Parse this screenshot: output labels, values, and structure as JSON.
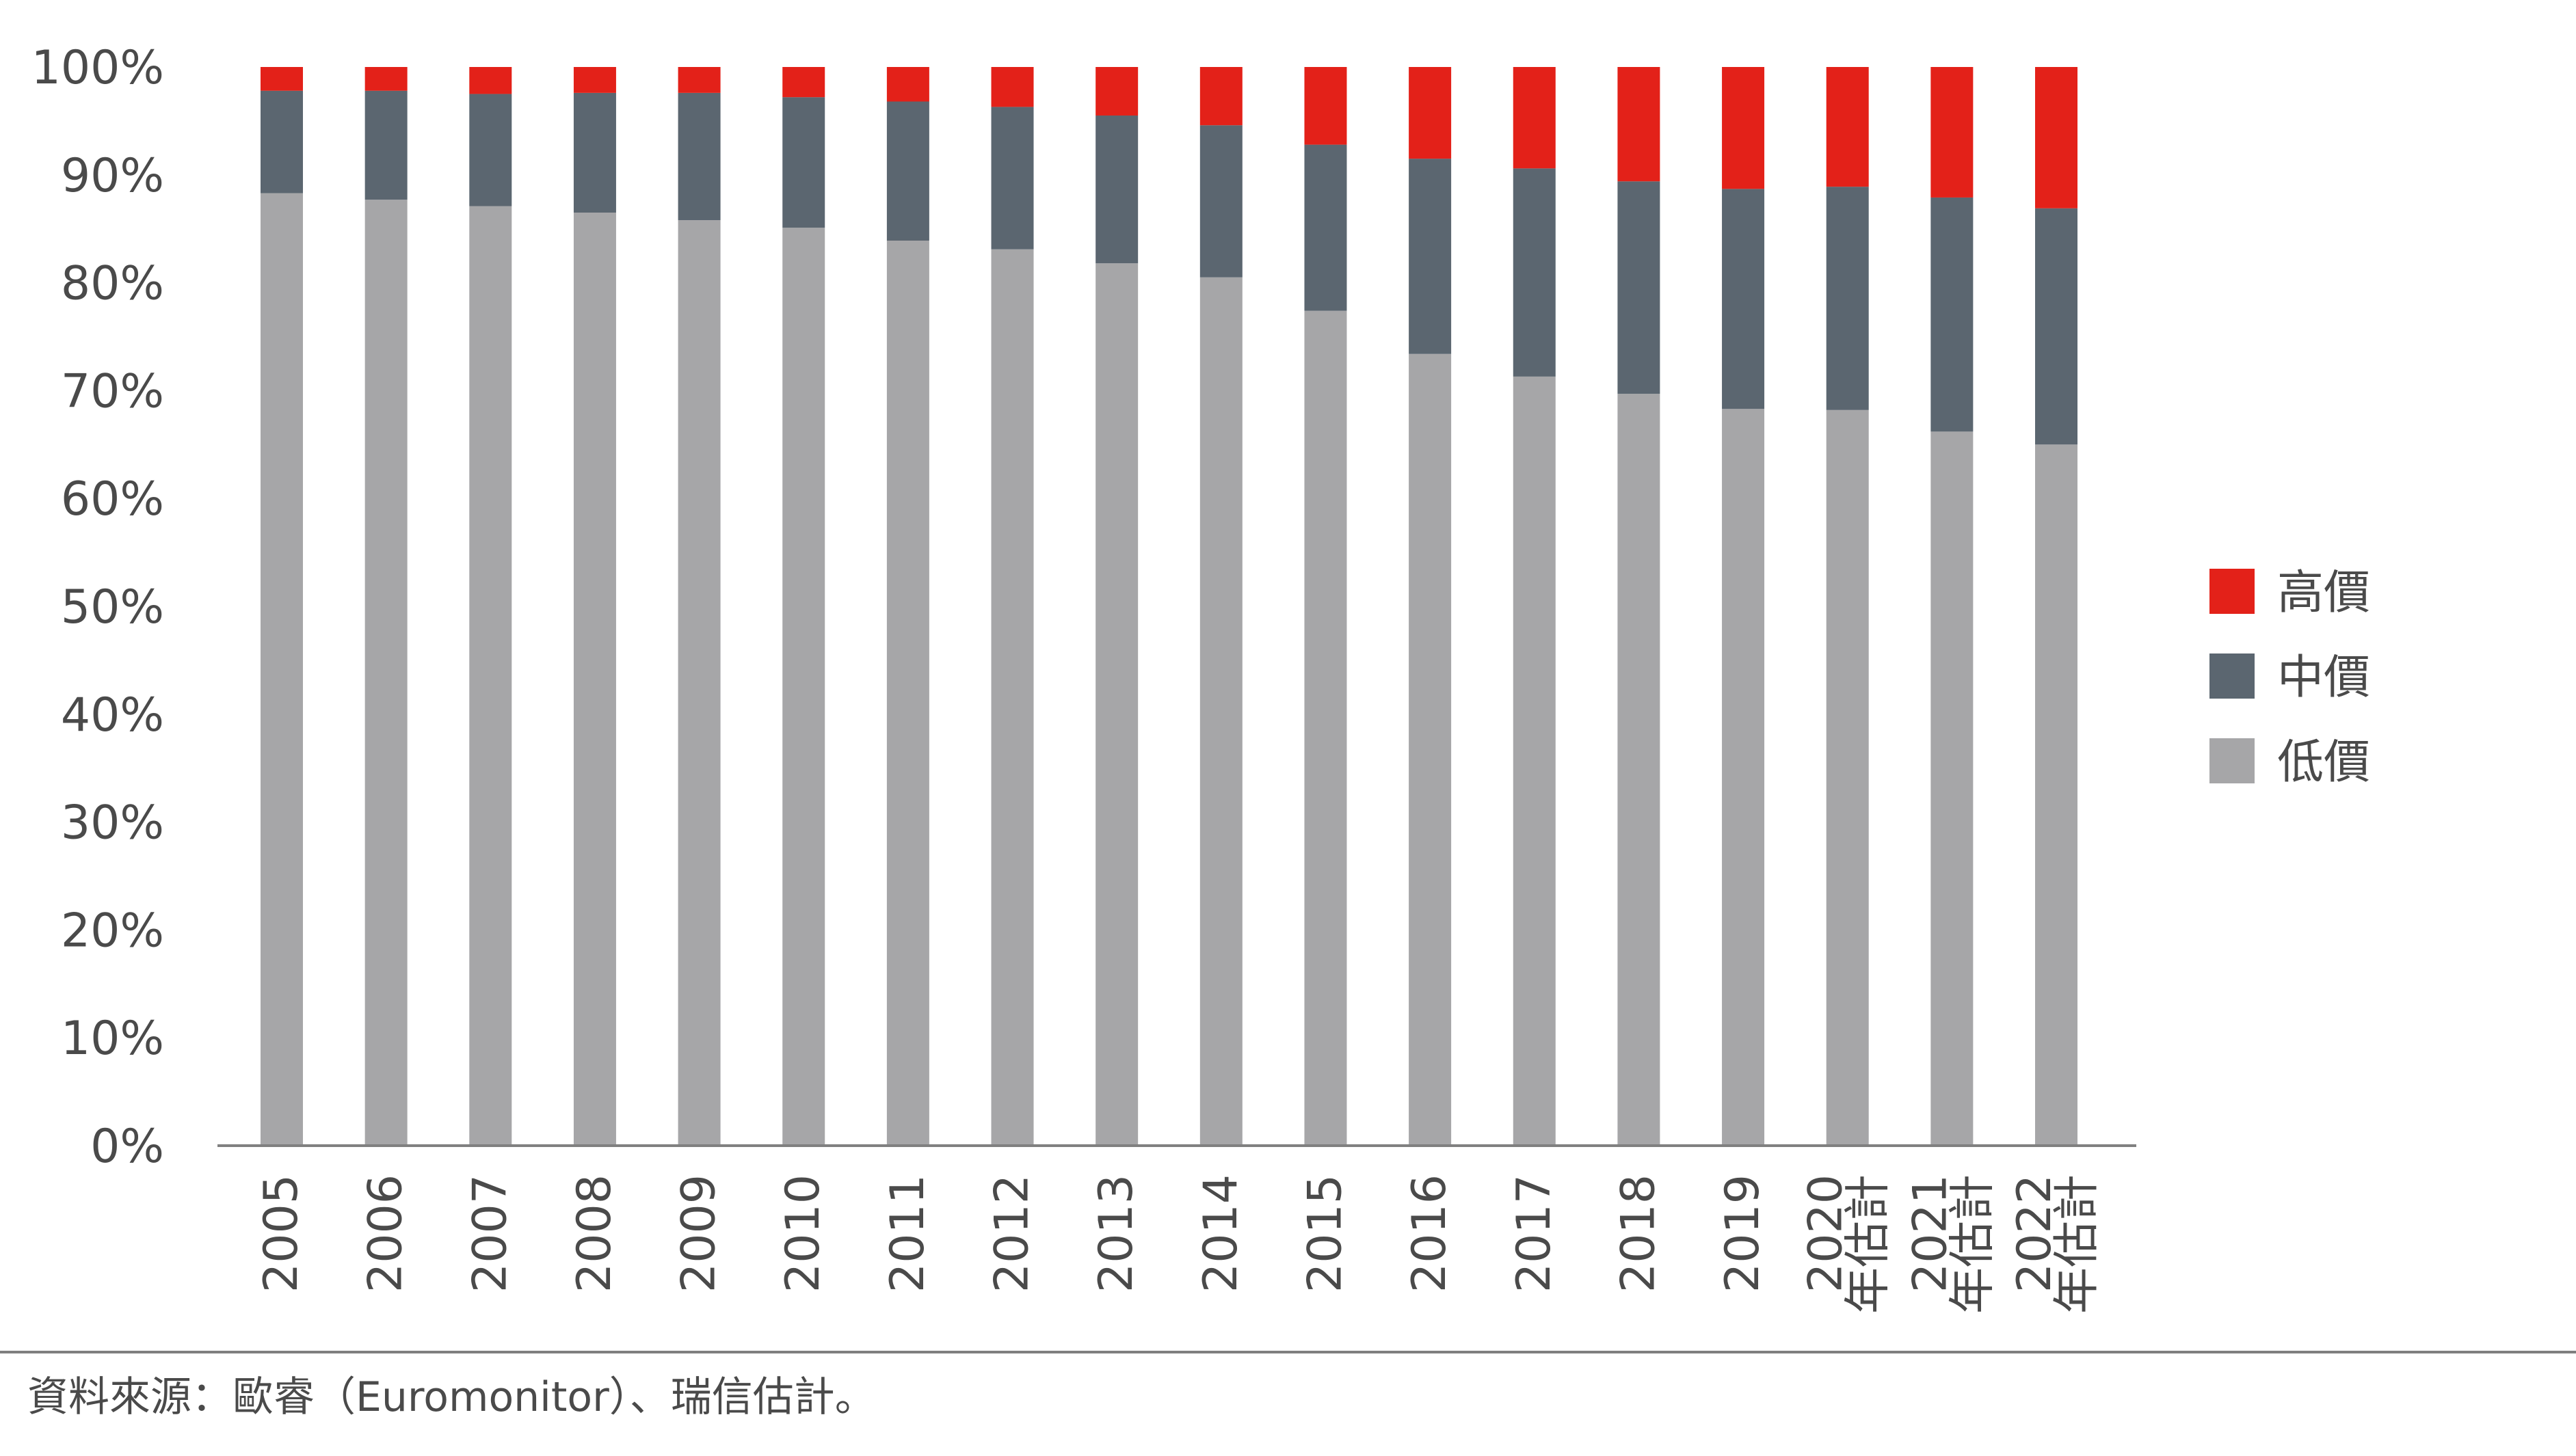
{
  "chart_data": {
    "type": "bar",
    "stacked": true,
    "categories": [
      "2005",
      "2006",
      "2007",
      "2008",
      "2009",
      "2010",
      "2011",
      "2012",
      "2013",
      "2014",
      "2015",
      "2016",
      "2017",
      "2018",
      "2019",
      "2020",
      "2021",
      "2022"
    ],
    "category_suffix": [
      "",
      "",
      "",
      "",
      "",
      "",
      "",
      "",
      "",
      "",
      "",
      "",
      "",
      "",
      "",
      "年估計",
      "年估計",
      "年估計"
    ],
    "series": [
      {
        "name": "低價",
        "color": "#a6a6a8",
        "values": [
          88.3,
          87.7,
          87.1,
          86.5,
          85.8,
          85.1,
          83.9,
          83.1,
          81.8,
          80.5,
          77.4,
          73.4,
          71.3,
          69.7,
          68.3,
          68.2,
          66.2,
          65.0
        ]
      },
      {
        "name": "中價",
        "color": "#5b6670",
        "values": [
          9.5,
          10.1,
          10.4,
          11.1,
          11.8,
          12.1,
          12.9,
          13.2,
          13.7,
          14.1,
          15.4,
          18.1,
          19.3,
          19.7,
          20.4,
          20.7,
          21.7,
          21.9
        ]
      },
      {
        "name": "高價",
        "color": "#e32119",
        "values": [
          2.2,
          2.2,
          2.5,
          2.4,
          2.4,
          2.8,
          3.2,
          3.7,
          4.5,
          5.4,
          7.2,
          8.5,
          9.4,
          10.6,
          11.3,
          11.1,
          12.1,
          13.1
        ]
      }
    ],
    "legend_order": [
      "高價",
      "中價",
      "低價"
    ],
    "legend_position": "right",
    "ylim": [
      0,
      100
    ],
    "yticks": [
      "0%",
      "10%",
      "20%",
      "30%",
      "40%",
      "50%",
      "60%",
      "70%",
      "80%",
      "90%",
      "100%"
    ],
    "grid": false
  },
  "source": "資料來源：歐睿（Euromonitor）、瑞信估計。"
}
